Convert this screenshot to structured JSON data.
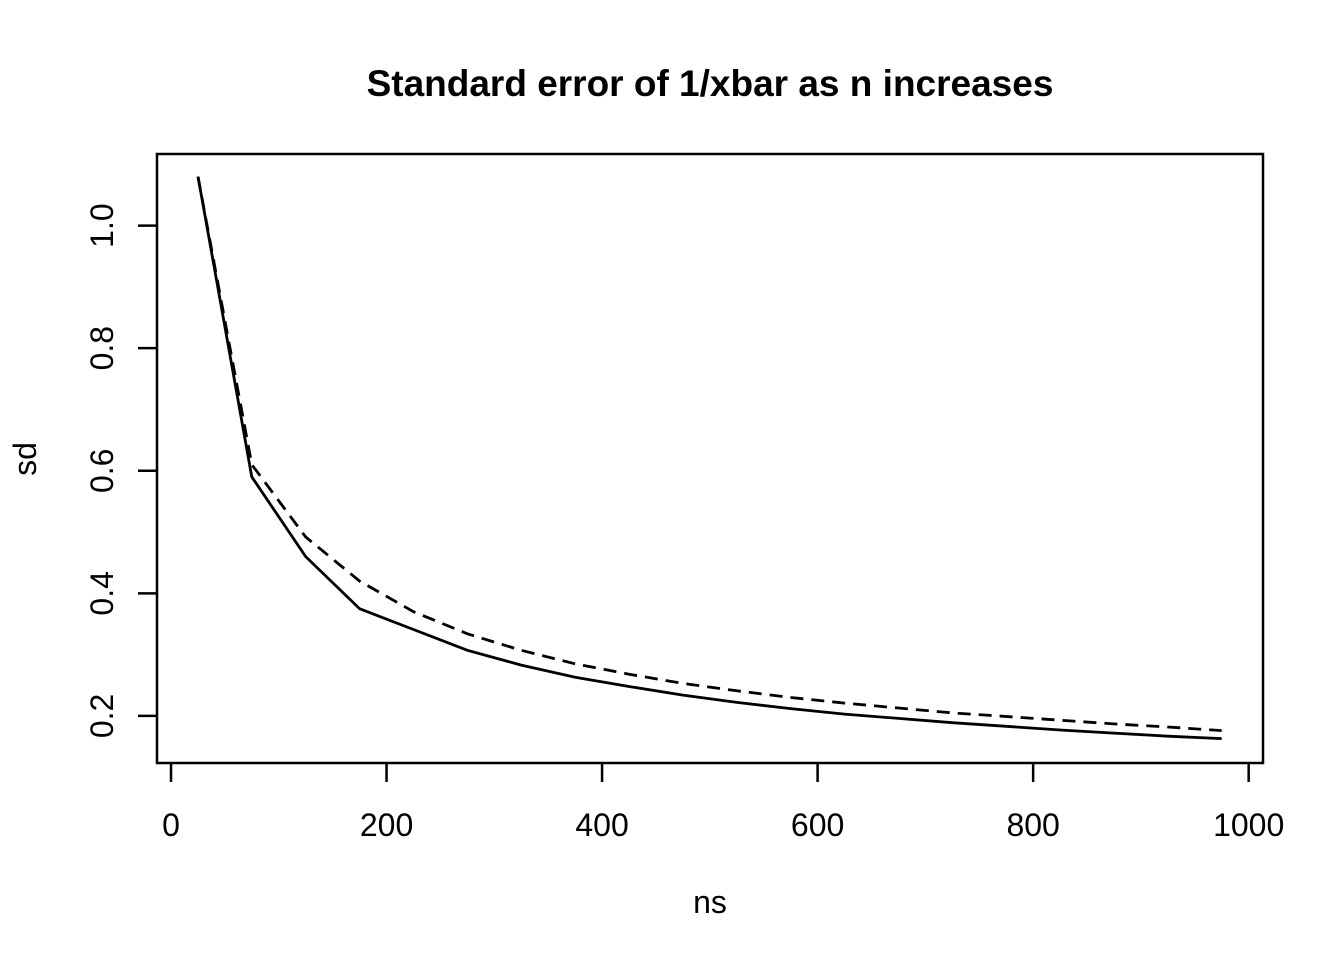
{
  "chart_data": {
    "type": "line",
    "title": "Standard error of 1/xbar as n increases",
    "xlabel": "ns",
    "ylabel": "sd",
    "x_tick_labels": [
      "0",
      "200",
      "400",
      "600",
      "800",
      "1000"
    ],
    "x_tick_values": [
      0,
      200,
      400,
      600,
      800,
      1000
    ],
    "y_tick_labels": [
      "0.2",
      "0.4",
      "0.6",
      "0.8",
      "1.0"
    ],
    "y_tick_values": [
      0.2,
      0.4,
      0.6,
      0.8,
      1.0
    ],
    "xlim": [
      -13.0,
      1013.3
    ],
    "ylim": [
      0.1232,
      1.1168
    ],
    "grid": false,
    "legend": "none",
    "line_color": "#000000",
    "background": "#ffffff",
    "x": [
      25,
      75,
      125,
      175,
      225,
      275,
      325,
      375,
      425,
      475,
      525,
      575,
      625,
      675,
      725,
      775,
      825,
      875,
      925,
      975
    ],
    "series": [
      {
        "name": "solid",
        "style": "solid",
        "values": [
          1.08,
          0.59,
          0.46,
          0.375,
          0.341,
          0.307,
          0.283,
          0.263,
          0.248,
          0.234,
          0.222,
          0.212,
          0.203,
          0.196,
          0.189,
          0.183,
          0.177,
          0.172,
          0.167,
          0.163
        ]
      },
      {
        "name": "dashed",
        "style": "dashed",
        "values": [
          1.08,
          0.61,
          0.492,
          0.42,
          0.37,
          0.334,
          0.307,
          0.285,
          0.268,
          0.253,
          0.241,
          0.23,
          0.221,
          0.213,
          0.205,
          0.199,
          0.193,
          0.187,
          0.182,
          0.176
        ]
      }
    ]
  }
}
